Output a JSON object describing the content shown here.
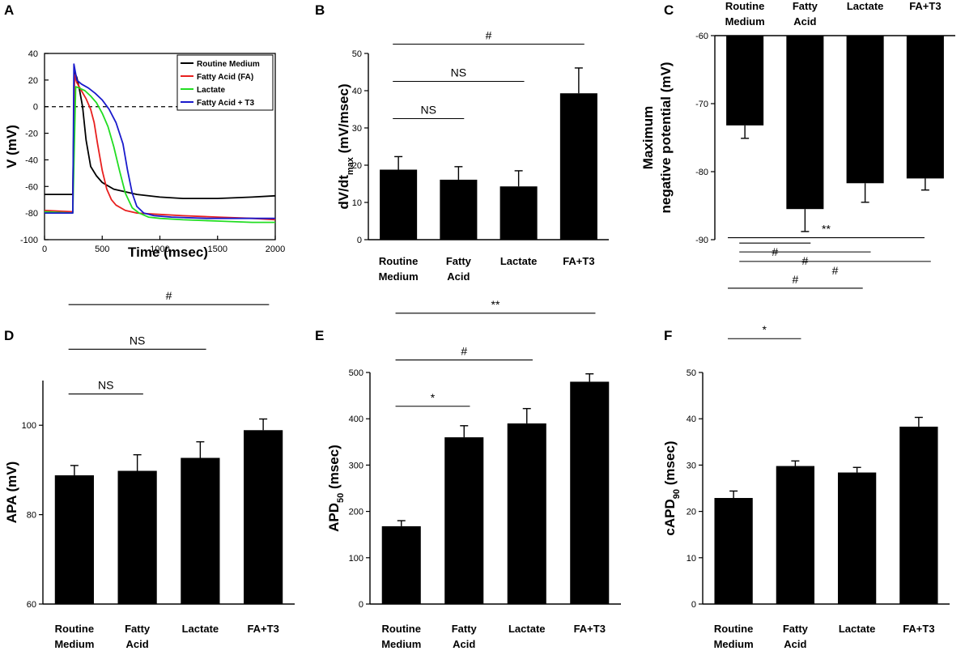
{
  "chart_data": [
    {
      "panel": "A",
      "type": "line",
      "xlabel": "Time (msec)",
      "ylabel": "V (mV)",
      "xlim": [
        0,
        2000
      ],
      "ylim": [
        -100,
        40
      ],
      "xticks": [
        "0",
        "500",
        "1000",
        "1500",
        "2000"
      ],
      "yticks": [
        "-100",
        "-80",
        "-60",
        "-40",
        "-20",
        "0",
        "20",
        "40"
      ],
      "reference_line": {
        "y": 0,
        "style": "dashed"
      },
      "legend_position": "top-right",
      "series": [
        {
          "name": "Routine Medium",
          "color": "#000000",
          "x": [
            0,
            245,
            260,
            280,
            300,
            330,
            360,
            400,
            450,
            500,
            600,
            800,
            1000,
            1200,
            1500,
            1800,
            2000
          ],
          "y": [
            -66,
            -66,
            26,
            22,
            14,
            0,
            -25,
            -45,
            -52,
            -57,
            -62,
            -66,
            -68,
            -69,
            -69,
            -68,
            -67
          ]
        },
        {
          "name": "Fatty Acid (FA)",
          "color": "#e8201f",
          "x": [
            0,
            245,
            260,
            280,
            320,
            360,
            400,
            430,
            460,
            500,
            540,
            580,
            620,
            700,
            800,
            1000,
            1200,
            1500,
            1800,
            2000
          ],
          "y": [
            -78,
            -79,
            24,
            18,
            12,
            6,
            -2,
            -12,
            -28,
            -48,
            -62,
            -70,
            -74,
            -78,
            -80,
            -81,
            -82,
            -83,
            -84,
            -85
          ]
        },
        {
          "name": "Lactate",
          "color": "#22dd22",
          "x": [
            0,
            245,
            270,
            300,
            350,
            400,
            450,
            500,
            550,
            600,
            650,
            700,
            760,
            820,
            900,
            1000,
            1200,
            1500,
            1800,
            2000
          ],
          "y": [
            -79,
            -80,
            15,
            14,
            12,
            8,
            3,
            -5,
            -15,
            -30,
            -48,
            -65,
            -76,
            -80,
            -83,
            -84,
            -85,
            -86,
            -87,
            -87
          ]
        },
        {
          "name": "Fatty Acid + T3",
          "color": "#1a1acc",
          "x": [
            0,
            245,
            255,
            280,
            320,
            380,
            440,
            500,
            560,
            620,
            680,
            720,
            760,
            800,
            860,
            950,
            1100,
            1400,
            1700,
            2000
          ],
          "y": [
            -80,
            -80,
            32,
            20,
            17,
            14,
            10,
            5,
            -2,
            -12,
            -28,
            -48,
            -65,
            -75,
            -80,
            -82,
            -83,
            -84,
            -84,
            -84
          ]
        }
      ]
    },
    {
      "panel": "B",
      "type": "bar",
      "ylabel": "dV/dt",
      "ylabel_sub": "max",
      "ylabel_tail": "(mV/msec)",
      "ylim": [
        0,
        50
      ],
      "yticks": [
        "0",
        "10",
        "20",
        "30",
        "40",
        "50"
      ],
      "categories": [
        [
          "Routine",
          "Medium"
        ],
        [
          "Fatty",
          "Acid"
        ],
        [
          "Lactate"
        ],
        [
          "FA+T3"
        ]
      ],
      "values": [
        18.8,
        16.1,
        14.3,
        39.3
      ],
      "errors": [
        3.5,
        3.5,
        4.2,
        6.8
      ],
      "significance": [
        {
          "label": "NS",
          "from": 0,
          "to": 1,
          "level": 32.5
        },
        {
          "label": "NS",
          "from": 0,
          "to": 2,
          "level": 42.5
        },
        {
          "label": "#",
          "from": 0,
          "to": 3,
          "level": 52.5
        }
      ]
    },
    {
      "panel": "C",
      "type": "bar",
      "orientation": "hanging",
      "ylabel_lines": [
        "Maximum",
        "negative potential (mV)"
      ],
      "ylim": [
        -90,
        -60
      ],
      "yticks": [
        "-90",
        "-80",
        "-70",
        "-60"
      ],
      "categories": [
        [
          "Routine",
          "Medium"
        ],
        [
          "Fatty",
          "Acid"
        ],
        [
          "Lactate"
        ],
        [
          "FA+T3"
        ]
      ],
      "values": [
        -73.2,
        -85.5,
        -81.7,
        -81.0
      ],
      "errors": [
        1.9,
        3.3,
        2.8,
        1.7
      ],
      "significance": [
        {
          "label": "#",
          "from": 0,
          "to": 1,
          "level": -90.5
        },
        {
          "label": "#",
          "from": 0,
          "to": 2,
          "level": -91.8
        },
        {
          "label": "#",
          "from": 0,
          "to": 3,
          "level": -93.2
        }
      ]
    },
    {
      "panel": "D",
      "type": "bar",
      "ylabel": "APA  (mV)",
      "ylim": [
        60,
        110
      ],
      "yticks": [
        "60",
        "80",
        "100"
      ],
      "categories": [
        [
          "Routine",
          "Medium"
        ],
        [
          "Fatty",
          "Acid"
        ],
        [
          "Lactate"
        ],
        [
          "FA+T3"
        ]
      ],
      "values": [
        88.8,
        89.8,
        92.7,
        98.9
      ],
      "errors": [
        2.2,
        3.6,
        3.6,
        2.5
      ],
      "significance": [
        {
          "label": "NS",
          "from": 0,
          "to": 1,
          "level": 107
        },
        {
          "label": "NS",
          "from": 0,
          "to": 2,
          "level": 117
        },
        {
          "label": "#",
          "from": 0,
          "to": 3,
          "level": 127
        }
      ]
    },
    {
      "panel": "E",
      "type": "bar",
      "ylabel": "APD",
      "ylabel_sub": "50",
      "ylabel_tail": "(msec)",
      "ylim": [
        0,
        500
      ],
      "yticks": [
        "0",
        "100",
        "200",
        "300",
        "400",
        "500"
      ],
      "categories": [
        [
          "Routine",
          "Medium"
        ],
        [
          "Fatty",
          "Acid"
        ],
        [
          "Lactate"
        ],
        [
          "FA+T3"
        ]
      ],
      "values": [
        168,
        360,
        390,
        480
      ],
      "errors": [
        12,
        25,
        32,
        17
      ],
      "significance": [
        {
          "label": "*",
          "from": 0,
          "to": 1,
          "level": 427
        },
        {
          "label": "#",
          "from": 0,
          "to": 2,
          "level": 527
        },
        {
          "label": "**",
          "from": 0,
          "to": 3,
          "level": 628
        }
      ]
    },
    {
      "panel": "F",
      "type": "bar",
      "ylabel": "cAPD",
      "ylabel_sub": "90",
      "ylabel_tail": "(msec)",
      "ylim": [
        0,
        50
      ],
      "yticks": [
        "0",
        "10",
        "20",
        "30",
        "40",
        "50"
      ],
      "categories": [
        [
          "Routine",
          "Medium"
        ],
        [
          "Fatty",
          "Acid"
        ],
        [
          "Lactate"
        ],
        [
          "FA+T3"
        ]
      ],
      "values": [
        22.9,
        29.8,
        28.4,
        38.3
      ],
      "errors": [
        1.5,
        1.1,
        1.1,
        2.0
      ],
      "significance": [
        {
          "label": "*",
          "from": 0,
          "to": 1,
          "level": 57.3
        },
        {
          "label": "#",
          "from": 0,
          "to": 2,
          "level": 68.2
        },
        {
          "label": "**",
          "from": 0,
          "to": 3,
          "level": 79.1
        }
      ]
    }
  ]
}
